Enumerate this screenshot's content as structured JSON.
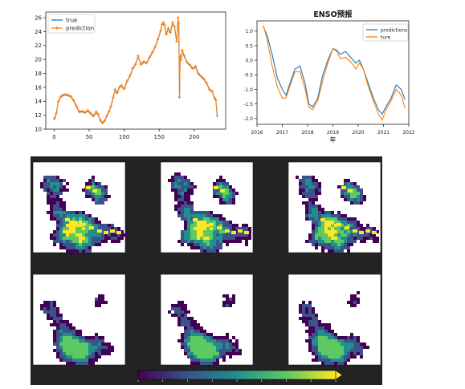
{
  "chart_data": [
    {
      "type": "line",
      "title": "",
      "xlabel": "",
      "ylabel": "",
      "xlim": [
        -12,
        245
      ],
      "ylim": [
        10,
        26.8
      ],
      "x_ticks": [
        "0",
        "50",
        "100",
        "150",
        "200"
      ],
      "x_tick_values": [
        0,
        50,
        100,
        150,
        200
      ],
      "y_ticks": [
        "10",
        "12",
        "14",
        "16",
        "18",
        "20",
        "22",
        "24",
        "26"
      ],
      "y_tick_values": [
        10,
        12,
        14,
        16,
        18,
        20,
        22,
        24,
        26
      ],
      "legend": "top-left",
      "grid": false,
      "series": [
        {
          "name": "true",
          "color": "#1f77b4",
          "x": [
            0,
            3,
            6,
            9,
            12,
            16,
            20,
            24,
            28,
            32,
            36,
            40,
            44,
            48,
            52,
            56,
            60,
            63,
            66,
            69,
            72,
            75,
            78,
            81,
            84,
            87,
            90,
            93,
            96,
            100,
            104,
            108,
            112,
            116,
            120,
            124,
            128,
            132,
            136,
            140,
            144,
            148,
            152,
            154,
            156,
            158,
            160,
            163,
            166,
            169,
            172,
            175,
            177,
            178,
            179,
            180,
            181,
            183,
            186,
            190,
            194,
            198,
            202,
            206,
            210,
            214,
            218,
            222,
            226,
            229,
            231,
            233
          ],
          "y": [
            11.3,
            12.2,
            14.0,
            14.5,
            14.8,
            14.9,
            14.8,
            14.6,
            14.0,
            13.2,
            12.4,
            12.5,
            12.3,
            12.6,
            12.2,
            11.8,
            12.4,
            12.0,
            11.2,
            10.8,
            11.1,
            11.8,
            12.4,
            13.2,
            14.4,
            15.6,
            15.1,
            15.9,
            16.2,
            15.7,
            16.8,
            17.5,
            18.6,
            19.2,
            20.4,
            19.2,
            19.6,
            19.4,
            20.2,
            20.9,
            21.7,
            22.8,
            24.0,
            24.9,
            25.2,
            24.8,
            23.5,
            24.4,
            23.8,
            25.2,
            24.6,
            22.5,
            25.8,
            25.1,
            14.4,
            20.3,
            19.9,
            21.2,
            20.4,
            19.5,
            19.1,
            18.6,
            18.9,
            17.9,
            17.5,
            17.1,
            16.5,
            15.6,
            15.3,
            14.4,
            14.1,
            11.8
          ]
        },
        {
          "name": "prediction",
          "color": "#ff7f0e",
          "x": [
            0,
            3,
            6,
            9,
            12,
            16,
            20,
            24,
            28,
            32,
            36,
            40,
            44,
            48,
            52,
            56,
            60,
            63,
            66,
            69,
            72,
            75,
            78,
            81,
            84,
            87,
            90,
            93,
            96,
            100,
            104,
            108,
            112,
            116,
            120,
            124,
            128,
            132,
            136,
            140,
            144,
            148,
            152,
            154,
            156,
            158,
            160,
            163,
            166,
            169,
            172,
            175,
            177,
            178,
            179,
            180,
            181,
            183,
            186,
            190,
            194,
            198,
            202,
            206,
            210,
            214,
            218,
            222,
            226,
            229,
            231,
            233
          ],
          "y": [
            11.5,
            12.3,
            14.0,
            14.6,
            14.9,
            15.0,
            14.9,
            14.7,
            14.1,
            13.3,
            12.5,
            12.6,
            12.4,
            12.7,
            12.3,
            11.9,
            12.5,
            12.1,
            11.3,
            10.9,
            11.2,
            11.9,
            12.5,
            13.3,
            14.5,
            15.7,
            15.2,
            16.0,
            16.3,
            15.8,
            16.9,
            17.6,
            18.7,
            19.3,
            20.5,
            19.3,
            19.7,
            19.5,
            20.3,
            21.0,
            21.8,
            22.9,
            24.1,
            25.0,
            25.3,
            24.9,
            23.6,
            24.5,
            23.9,
            25.3,
            24.7,
            22.6,
            26.0,
            25.2,
            14.6,
            20.5,
            20.0,
            21.3,
            20.5,
            19.6,
            19.2,
            18.7,
            19.0,
            18.0,
            17.6,
            17.2,
            16.6,
            15.7,
            15.4,
            14.5,
            14.2,
            11.9
          ]
        }
      ]
    },
    {
      "type": "line",
      "title": "ENSO预报",
      "xlabel": "年",
      "ylabel": "",
      "xlim": [
        2016,
        2022
      ],
      "ylim": [
        -2.2,
        1.35
      ],
      "x_ticks": [
        "2016",
        "2017",
        "2018",
        "2019",
        "2020",
        "2021",
        "2022"
      ],
      "x_tick_values": [
        2016,
        2017,
        2018,
        2019,
        2020,
        2021,
        2022
      ],
      "y_ticks": [
        "1.0",
        "0.5",
        "0.0",
        "-0.5",
        "-1.0",
        "-1.5",
        "-2.0"
      ],
      "y_tick_values": [
        1.0,
        0.5,
        0.0,
        -0.5,
        -1.0,
        -1.5,
        -2.0
      ],
      "legend": "top-right",
      "grid": false,
      "series": [
        {
          "name": "predictions",
          "color": "#1f77b4",
          "x": [
            2016.25,
            2016.4,
            2016.6,
            2016.8,
            2017.0,
            2017.15,
            2017.3,
            2017.5,
            2017.7,
            2017.9,
            2018.05,
            2018.2,
            2018.4,
            2018.6,
            2018.8,
            2019.0,
            2019.15,
            2019.3,
            2019.5,
            2019.7,
            2019.9,
            2020.05,
            2020.2,
            2020.4,
            2020.6,
            2020.8,
            2020.95,
            2021.1,
            2021.3,
            2021.5,
            2021.7,
            2021.85
          ],
          "y": [
            1.15,
            0.85,
            0.2,
            -0.6,
            -1.0,
            -1.2,
            -0.8,
            -0.3,
            -0.2,
            -0.8,
            -1.5,
            -1.6,
            -1.3,
            -0.5,
            0.0,
            0.4,
            0.35,
            0.2,
            0.3,
            0.1,
            -0.1,
            0.0,
            -0.3,
            -0.8,
            -1.3,
            -1.7,
            -1.85,
            -1.6,
            -1.3,
            -0.85,
            -1.0,
            -1.35
          ]
        },
        {
          "name": "ture",
          "color": "#ff7f0e",
          "x": [
            2016.25,
            2016.4,
            2016.6,
            2016.8,
            2017.0,
            2017.15,
            2017.3,
            2017.5,
            2017.7,
            2017.9,
            2018.05,
            2018.2,
            2018.4,
            2018.6,
            2018.8,
            2019.0,
            2019.15,
            2019.3,
            2019.5,
            2019.7,
            2019.9,
            2020.05,
            2020.2,
            2020.4,
            2020.6,
            2020.8,
            2020.95,
            2021.1,
            2021.3,
            2021.5,
            2021.7,
            2021.85
          ],
          "y": [
            1.2,
            0.7,
            -0.2,
            -0.9,
            -1.3,
            -1.3,
            -0.9,
            -0.4,
            -0.4,
            -1.0,
            -1.6,
            -1.7,
            -1.4,
            -0.7,
            -0.1,
            0.4,
            0.3,
            0.05,
            0.1,
            -0.05,
            -0.3,
            -0.1,
            -0.3,
            -0.9,
            -1.4,
            -1.85,
            -2.05,
            -1.7,
            -1.4,
            -1.0,
            -1.2,
            -1.65
          ]
        }
      ]
    }
  ],
  "image_grid": {
    "background": "#232323",
    "panel_background": "#ffffff",
    "rows": 2,
    "cols": 3,
    "colormap": [
      "#440154",
      "#3b528b",
      "#21908d",
      "#5dc962",
      "#fde725"
    ],
    "colorbar_tick_count": 9
  }
}
